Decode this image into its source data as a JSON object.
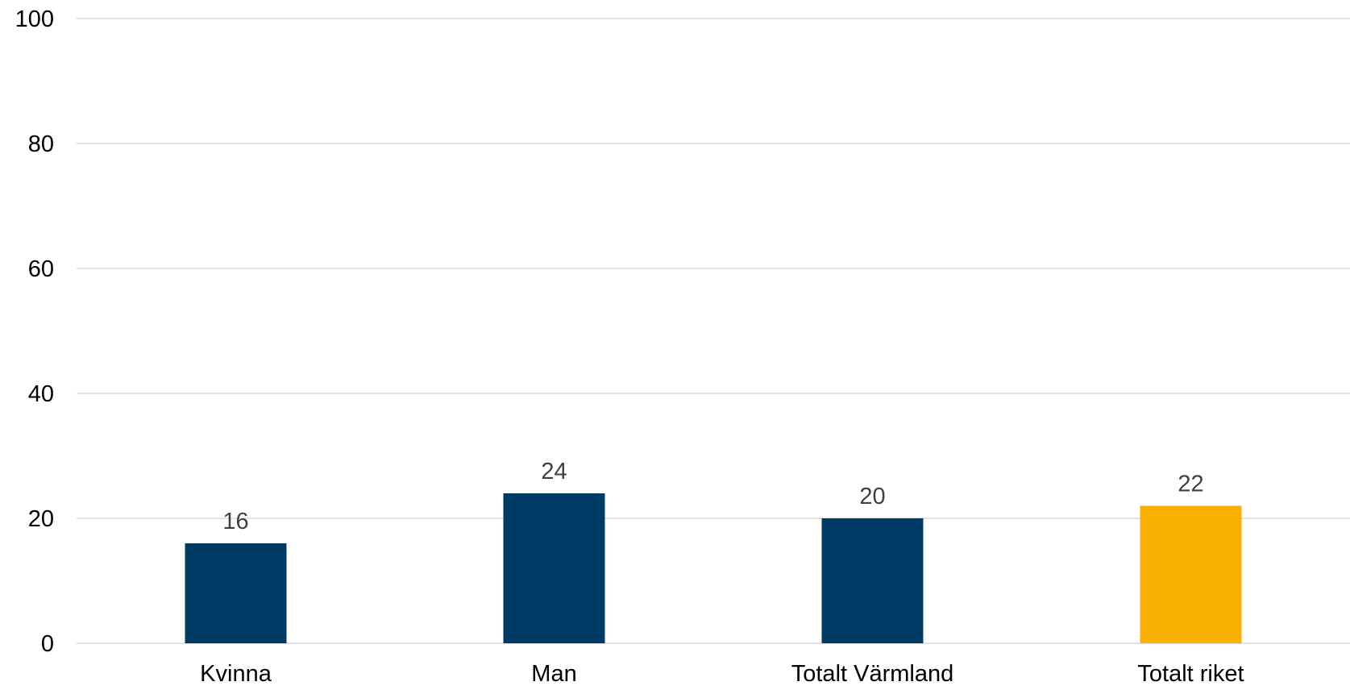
{
  "chart_data": {
    "type": "bar",
    "title": "",
    "xlabel": "",
    "ylabel": "",
    "categories": [
      "Kvinna",
      "Man",
      "Totalt Värmland",
      "Totalt riket"
    ],
    "values": [
      16,
      24,
      20,
      22
    ],
    "data_labels": [
      "16",
      "24",
      "20",
      "22"
    ],
    "bar_colors": [
      "#003b66",
      "#003b66",
      "#003b66",
      "#f9b000"
    ],
    "ylim": [
      0,
      100
    ],
    "yticks": [
      0,
      20,
      40,
      60,
      80,
      100
    ],
    "ytick_labels": [
      "0",
      "20",
      "40",
      "60",
      "80",
      "100"
    ],
    "grid": true,
    "legend": "none"
  }
}
